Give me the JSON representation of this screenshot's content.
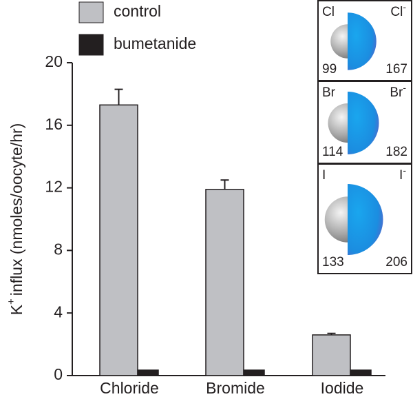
{
  "chart_data": {
    "type": "bar",
    "categories": [
      "Chloride",
      "Bromide",
      "Iodide"
    ],
    "series": [
      {
        "name": "control",
        "color": "#bfc0c4",
        "values": [
          17.3,
          11.9,
          2.6
        ],
        "errors": [
          1.0,
          0.6,
          0.1
        ]
      },
      {
        "name": "bumetanide",
        "color": "#231f20",
        "values": [
          0.35,
          0.35,
          0.35
        ]
      }
    ],
    "y_label": {
      "base": "K",
      "sup": "+",
      "rest": "influx (nmoles/oocyte/hr)"
    },
    "ylim": [
      0,
      20
    ],
    "yticks": [
      0,
      4,
      8,
      12,
      16,
      20
    ],
    "insets": [
      {
        "atom": "Cl",
        "ion": "Cl",
        "charge": "-",
        "atom_radius": 99,
        "ion_radius": 167
      },
      {
        "atom": "Br",
        "ion": "Br",
        "charge": "-",
        "atom_radius": 114,
        "ion_radius": 182
      },
      {
        "atom": "I",
        "ion": "I",
        "charge": "-",
        "atom_radius": 133,
        "ion_radius": 206
      }
    ]
  }
}
